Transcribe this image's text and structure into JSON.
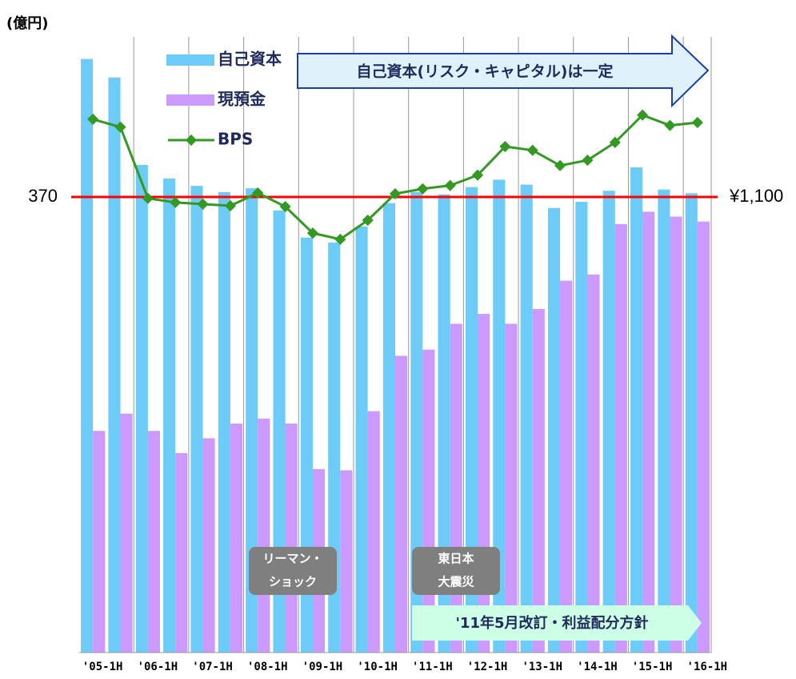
{
  "chart_data": {
    "type": "bar",
    "unit_label": "(億円)",
    "categories": [
      "'05-1H",
      null,
      "'06-1H",
      null,
      "'07-1H",
      null,
      "'08-1H",
      null,
      "'09-1H",
      null,
      "'10-1H",
      null,
      "'11-1H",
      null,
      "'12-1H",
      null,
      "'13-1H",
      null,
      "'14-1H",
      null,
      "'15-1H",
      null,
      "'16-1H"
    ],
    "series": [
      {
        "name": "自己資本",
        "color": "#6ccbf7",
        "axis": "y",
        "values": [
          482,
          467,
          396,
          385,
          379,
          374,
          377,
          359,
          337,
          333,
          346,
          365,
          374,
          372,
          378,
          384,
          380,
          361,
          366,
          375,
          394,
          376,
          373
        ]
      },
      {
        "name": "現預金",
        "color": "#cc99ff",
        "axis": "y",
        "values": [
          180,
          194,
          180,
          162,
          174,
          186,
          190,
          186,
          149,
          148,
          196,
          241,
          246,
          267,
          275,
          267,
          279,
          302,
          307,
          348,
          358,
          354,
          350
        ]
      },
      {
        "name": "BPS",
        "color": "#339922",
        "axis": "y2",
        "values": [
          1288,
          1269,
          1097,
          1087,
          1083,
          1079,
          1110,
          1077,
          1013,
          998,
          1044,
          1108,
          1120,
          1128,
          1153,
          1222,
          1213,
          1176,
          1189,
          1232,
          1298,
          1273,
          1280
        ]
      }
    ],
    "ylim": [
      0,
      500
    ],
    "yticks": [
      370
    ],
    "y2lim": [
      0,
      1487
    ],
    "y2ticks": [
      {
        "value": 1100,
        "label": "¥1,100"
      }
    ],
    "grid_color": "#ff0000",
    "annotations": [
      "自己資本(リスク・キャピタル)は一定",
      "リーマン・",
      "ショック",
      "東日本",
      "大震災",
      "'11年5月改訂・利益配分方針"
    ]
  }
}
